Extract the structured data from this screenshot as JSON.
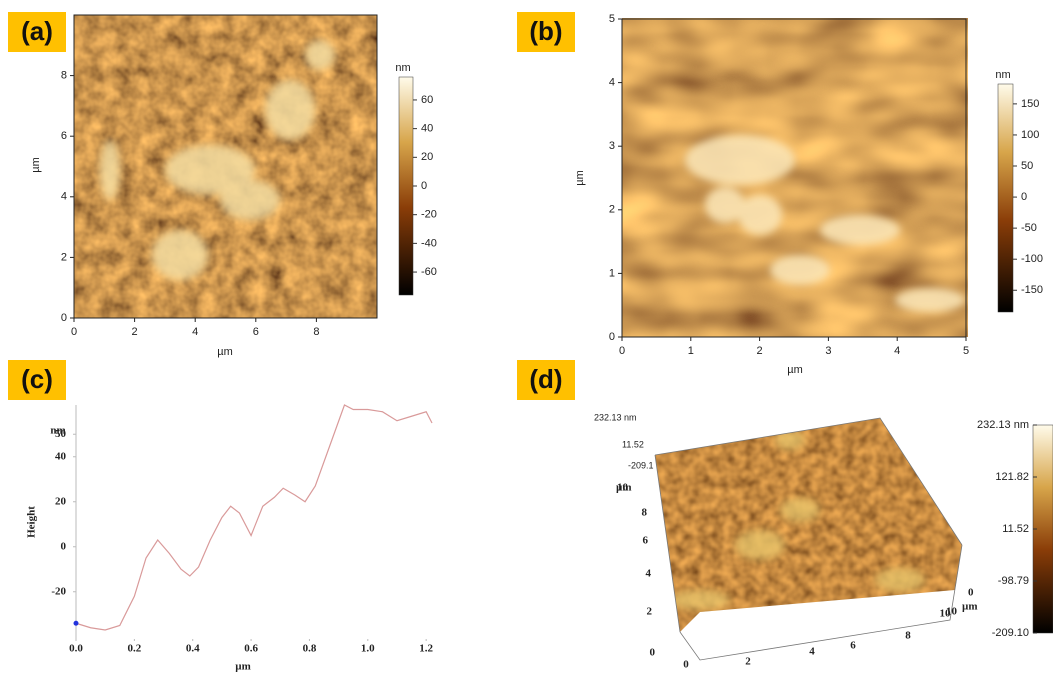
{
  "chart_data": [
    {
      "type": "image",
      "panel": "(a)",
      "xlabel": "µm",
      "ylabel": "µm",
      "xlim": [
        0,
        10
      ],
      "ylim": [
        0,
        10
      ],
      "xticks": [
        0,
        2,
        4,
        6,
        8
      ],
      "yticks": [
        0,
        2,
        4,
        6,
        8
      ],
      "colorbar": {
        "title": "nm",
        "lim": [
          -76,
          76
        ],
        "ticks": [
          60,
          40,
          20,
          0,
          -20,
          -40,
          -60
        ]
      }
    },
    {
      "type": "image",
      "panel": "(b)",
      "xlabel": "µm",
      "ylabel": "µm",
      "xlim": [
        0,
        5
      ],
      "ylim": [
        0,
        5
      ],
      "xticks": [
        0,
        1,
        2,
        3,
        4,
        5
      ],
      "yticks": [
        0,
        1,
        2,
        3,
        4,
        5
      ],
      "colorbar": {
        "title": "nm",
        "lim": [
          -185,
          182
        ],
        "ticks": [
          150,
          100,
          50,
          0,
          -50,
          -100,
          -150
        ]
      }
    },
    {
      "type": "line",
      "panel": "(c)",
      "xlabel": "µm",
      "ylabel": "Height",
      "yunit": "nm",
      "color": "#d99a9a",
      "xlim": [
        0,
        1.22
      ],
      "ylim": [
        -41,
        63
      ],
      "xticks": [
        {
          "value": 0,
          "label": "0.0"
        },
        0.2,
        0.4,
        0.6,
        0.8,
        {
          "value": 1,
          "label": "1.0"
        },
        1.2
      ],
      "yticks": [
        -20,
        0,
        20,
        40,
        50
      ],
      "x": [
        0,
        0.05,
        0.1,
        0.15,
        0.2,
        0.24,
        0.28,
        0.32,
        0.36,
        0.39,
        0.42,
        0.46,
        0.5,
        0.53,
        0.56,
        0.6,
        0.64,
        0.68,
        0.71,
        0.75,
        0.785,
        0.82,
        0.87,
        0.92,
        0.95,
        1.0,
        1.05,
        1.1,
        1.15,
        1.2,
        1.22
      ],
      "values": [
        -34,
        -36,
        -37,
        -35,
        -22,
        -5,
        3,
        -3,
        -10,
        -13,
        -9,
        3,
        13,
        18,
        15,
        5,
        18,
        22,
        26,
        23,
        20,
        27,
        45,
        63,
        61,
        61,
        60,
        56,
        58,
        60,
        55
      ]
    },
    {
      "type": "surface3d",
      "panel": "(d)",
      "ylabel": "µm",
      "depth_label": "µm",
      "xticks": [
        0,
        2,
        4,
        6,
        8,
        10
      ],
      "yticks": [
        0,
        2,
        4,
        6,
        8,
        10
      ],
      "depth_ticks": [
        0,
        10
      ],
      "zticks": [
        {
          "value": 232.13,
          "label": "232.13 nm"
        },
        11.52,
        {
          "value": -209.1,
          "label": "-209.1"
        }
      ],
      "colorbar": {
        "lim": [
          -209.1,
          232.13
        ],
        "ticks": [
          {
            "value": 232.13,
            "label": "232.13 nm"
          },
          121.82,
          11.52,
          -98.79,
          {
            "value": -209.1,
            "label": "-209.10"
          }
        ]
      }
    }
  ]
}
